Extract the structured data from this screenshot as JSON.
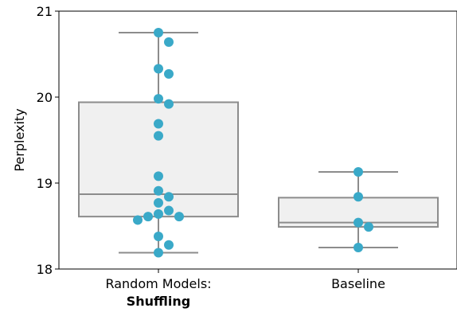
{
  "chart_data": {
    "type": "box",
    "ylabel": "Perplexity",
    "ylim": [
      18,
      21
    ],
    "yticks": [
      18,
      19,
      20,
      21
    ],
    "grid": false,
    "categories": [
      {
        "label": "Random Models:",
        "sublabel": "Shuffling"
      },
      {
        "label": "Baseline",
        "sublabel": ""
      }
    ],
    "boxes": [
      {
        "whisker_low": 18.19,
        "q1": 18.61,
        "median": 18.87,
        "q3": 19.94,
        "whisker_high": 20.75
      },
      {
        "whisker_low": 18.25,
        "q1": 18.49,
        "median": 18.54,
        "q3": 18.83,
        "whisker_high": 19.13
      }
    ],
    "points": [
      [
        20.75,
        20.64,
        20.33,
        20.27,
        19.98,
        19.92,
        19.69,
        19.55,
        19.08,
        18.91,
        18.84,
        18.77,
        18.68,
        18.64,
        18.61,
        18.61,
        18.57,
        18.38,
        18.28,
        18.19
      ],
      [
        19.13,
        18.84,
        18.54,
        18.49,
        18.25
      ]
    ],
    "colors": {
      "point": "#3aa9c8",
      "box_fill": "#f0f0f0",
      "box_line": "#8c8c8c"
    }
  }
}
